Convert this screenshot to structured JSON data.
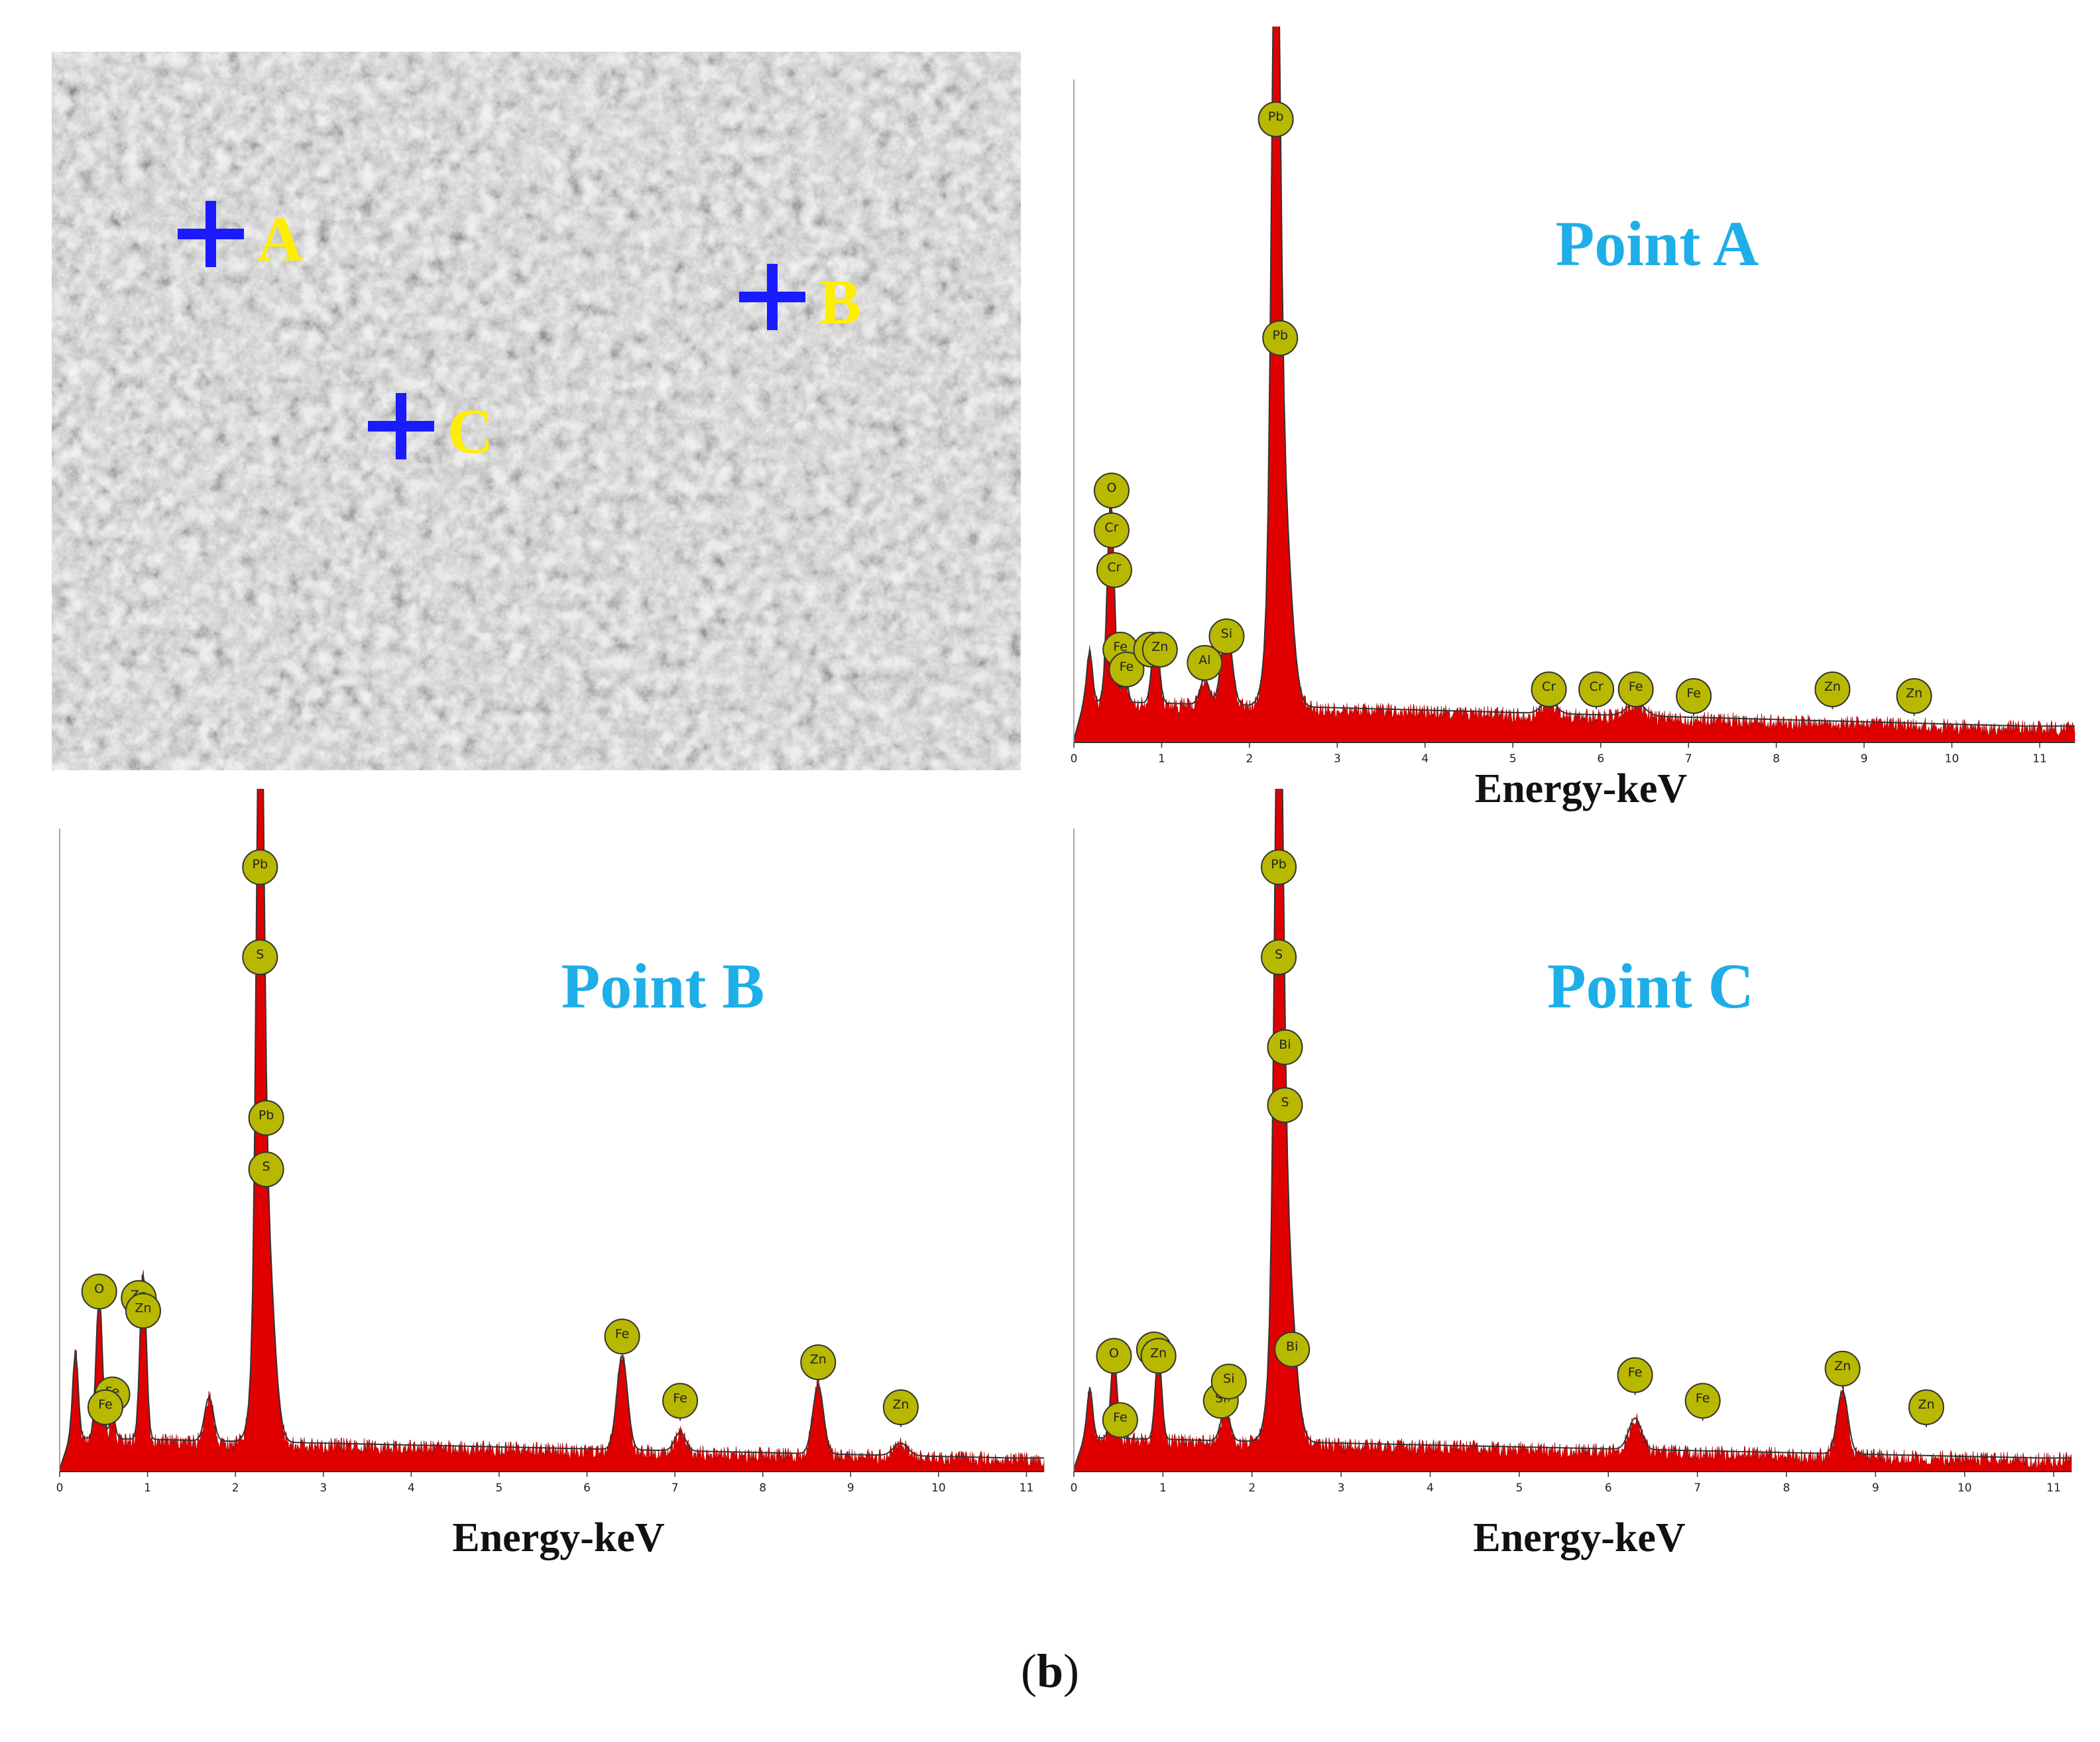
{
  "caption": {
    "open": "(",
    "letter": "b",
    "close": ")"
  },
  "sem": {
    "markers": [
      {
        "label": "A"
      },
      {
        "label": "B"
      },
      {
        "label": "C"
      }
    ],
    "marker_color": "#1a1aff",
    "label_color": "#ffee00"
  },
  "colors": {
    "spectrum_fill": "#e00000",
    "badge_fill": "#b8b800",
    "title_color": "#1eaee8"
  },
  "chart_data": [
    {
      "id": "A",
      "type": "area",
      "title": "Point A",
      "xlabel": "Energy-keV",
      "ylabel": "",
      "xlim": [
        0,
        11.4
      ],
      "xticks": [
        "0",
        "1",
        "2",
        "3",
        "4",
        "5",
        "6",
        "7",
        "8",
        "9",
        "10",
        "11"
      ],
      "peaks": [
        {
          "e": 0.18,
          "h": 0.08,
          "w": 0.03
        },
        {
          "e": 0.42,
          "h": 0.31,
          "w": 0.04
        },
        {
          "e": 0.58,
          "h": 0.05,
          "w": 0.03
        },
        {
          "e": 0.93,
          "h": 0.11,
          "w": 0.04
        },
        {
          "e": 1.49,
          "h": 0.04,
          "w": 0.05
        },
        {
          "e": 1.74,
          "h": 0.12,
          "w": 0.06
        },
        {
          "e": 2.3,
          "h": 1.0,
          "w": 0.045
        },
        {
          "e": 2.35,
          "h": 0.4,
          "w": 0.1
        },
        {
          "e": 5.41,
          "h": 0.02,
          "w": 0.08
        },
        {
          "e": 6.4,
          "h": 0.02,
          "w": 0.1
        }
      ],
      "baseline": 0.06,
      "labels": [
        {
          "el": "Pb",
          "e": 2.3,
          "h": 0.94
        },
        {
          "el": "Pb",
          "e": 2.35,
          "h": 0.61
        },
        {
          "el": "O",
          "e": 0.43,
          "h": 0.38
        },
        {
          "el": "Cr",
          "e": 0.43,
          "h": 0.32
        },
        {
          "el": "Cr",
          "e": 0.46,
          "h": 0.26
        },
        {
          "el": "Fe",
          "e": 0.53,
          "h": 0.14
        },
        {
          "el": "Fe",
          "e": 0.6,
          "h": 0.11
        },
        {
          "el": "Zn",
          "e": 0.88,
          "h": 0.14
        },
        {
          "el": "Zn",
          "e": 0.98,
          "h": 0.14
        },
        {
          "el": "Al",
          "e": 1.49,
          "h": 0.12
        },
        {
          "el": "Si",
          "e": 1.74,
          "h": 0.16
        },
        {
          "el": "Cr",
          "e": 5.41,
          "h": 0.08
        },
        {
          "el": "Cr",
          "e": 5.95,
          "h": 0.08
        },
        {
          "el": "Fe",
          "e": 6.4,
          "h": 0.08
        },
        {
          "el": "Fe",
          "e": 7.06,
          "h": 0.07
        },
        {
          "el": "Zn",
          "e": 8.64,
          "h": 0.08
        },
        {
          "el": "Zn",
          "e": 9.57,
          "h": 0.07
        }
      ]
    },
    {
      "id": "B",
      "type": "area",
      "title": "Point B",
      "xlabel": "Energy-keV",
      "ylabel": "",
      "xlim": [
        0,
        11.2
      ],
      "xticks": [
        "0",
        "1",
        "2",
        "3",
        "4",
        "5",
        "6",
        "7",
        "8",
        "9",
        "10",
        "11"
      ],
      "peaks": [
        {
          "e": 0.18,
          "h": 0.14,
          "w": 0.03
        },
        {
          "e": 0.45,
          "h": 0.23,
          "w": 0.035
        },
        {
          "e": 0.6,
          "h": 0.04,
          "w": 0.03
        },
        {
          "e": 0.95,
          "h": 0.27,
          "w": 0.035
        },
        {
          "e": 1.7,
          "h": 0.07,
          "w": 0.05
        },
        {
          "e": 2.28,
          "h": 1.0,
          "w": 0.04
        },
        {
          "e": 2.33,
          "h": 0.4,
          "w": 0.09
        },
        {
          "e": 6.4,
          "h": 0.15,
          "w": 0.06
        },
        {
          "e": 7.06,
          "h": 0.03,
          "w": 0.06
        },
        {
          "e": 8.63,
          "h": 0.11,
          "w": 0.06
        },
        {
          "e": 9.57,
          "h": 0.02,
          "w": 0.08
        }
      ],
      "baseline": 0.05,
      "labels": [
        {
          "el": "Pb",
          "e": 2.28,
          "h": 0.94
        },
        {
          "el": "S",
          "e": 2.28,
          "h": 0.8
        },
        {
          "el": "Pb",
          "e": 2.35,
          "h": 0.55
        },
        {
          "el": "S",
          "e": 2.35,
          "h": 0.47
        },
        {
          "el": "O",
          "e": 0.45,
          "h": 0.28
        },
        {
          "el": "Zn",
          "e": 0.9,
          "h": 0.27
        },
        {
          "el": "Zn",
          "e": 0.95,
          "h": 0.25
        },
        {
          "el": "Fe",
          "e": 0.6,
          "h": 0.12
        },
        {
          "el": "Fe",
          "e": 0.52,
          "h": 0.1
        },
        {
          "el": "Fe",
          "e": 6.4,
          "h": 0.21
        },
        {
          "el": "Fe",
          "e": 7.06,
          "h": 0.11
        },
        {
          "el": "Zn",
          "e": 8.63,
          "h": 0.17
        },
        {
          "el": "Zn",
          "e": 9.57,
          "h": 0.1
        }
      ]
    },
    {
      "id": "C",
      "type": "area",
      "title": "Point C",
      "xlabel": "Energy-keV",
      "ylabel": "",
      "xlim": [
        0,
        11.2
      ],
      "xticks": [
        "0",
        "1",
        "2",
        "3",
        "4",
        "5",
        "6",
        "7",
        "8",
        "9",
        "10",
        "11"
      ],
      "peaks": [
        {
          "e": 0.18,
          "h": 0.08,
          "w": 0.03
        },
        {
          "e": 0.45,
          "h": 0.13,
          "w": 0.035
        },
        {
          "e": 0.95,
          "h": 0.14,
          "w": 0.035
        },
        {
          "e": 1.7,
          "h": 0.05,
          "w": 0.05
        },
        {
          "e": 2.3,
          "h": 1.0,
          "w": 0.045
        },
        {
          "e": 2.35,
          "h": 0.4,
          "w": 0.1
        },
        {
          "e": 6.3,
          "h": 0.05,
          "w": 0.07
        },
        {
          "e": 8.63,
          "h": 0.1,
          "w": 0.06
        }
      ],
      "baseline": 0.05,
      "labels": [
        {
          "el": "Pb",
          "e": 2.3,
          "h": 0.94
        },
        {
          "el": "S",
          "e": 2.3,
          "h": 0.8
        },
        {
          "el": "Bi",
          "e": 2.37,
          "h": 0.66
        },
        {
          "el": "S",
          "e": 2.37,
          "h": 0.57
        },
        {
          "el": "Bi",
          "e": 2.45,
          "h": 0.19
        },
        {
          "el": "O",
          "e": 0.45,
          "h": 0.18
        },
        {
          "el": "Zn",
          "e": 0.9,
          "h": 0.19
        },
        {
          "el": "Zn",
          "e": 0.95,
          "h": 0.18
        },
        {
          "el": "Fe",
          "e": 0.52,
          "h": 0.08
        },
        {
          "el": "Si",
          "e": 1.65,
          "h": 0.11
        },
        {
          "el": "Si",
          "e": 1.74,
          "h": 0.14
        },
        {
          "el": "Fe",
          "e": 6.3,
          "h": 0.15
        },
        {
          "el": "Fe",
          "e": 7.06,
          "h": 0.11
        },
        {
          "el": "Zn",
          "e": 8.63,
          "h": 0.16
        },
        {
          "el": "Zn",
          "e": 9.57,
          "h": 0.1
        }
      ]
    }
  ]
}
